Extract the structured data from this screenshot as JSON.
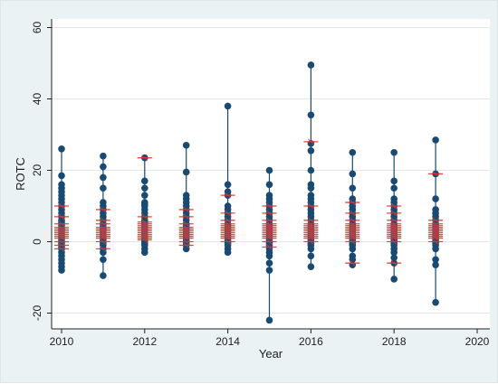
{
  "chart_data": {
    "type": "scatter",
    "title": "",
    "xlabel": "Year",
    "ylabel": "ROTC",
    "xlim": [
      2010,
      2020
    ],
    "ylim": [
      -20,
      60
    ],
    "xticks": [
      2010,
      2012,
      2014,
      2016,
      2018,
      2020
    ],
    "yticks": [
      -20,
      0,
      20,
      40,
      60
    ],
    "grid": "horizontal",
    "legend": "none",
    "colors": {
      "points": "#1a4a72",
      "means": "#e8322b",
      "plot_bg": "#ffffff",
      "frame_bg": "#eaf2f3",
      "grid": "#e1e7ea"
    },
    "series": [
      {
        "kind": "points",
        "groups": [
          {
            "year": 2010,
            "values": [
              26,
              18.5,
              16,
              15,
              14,
              13,
              12,
              11,
              10,
              9,
              8,
              7,
              6,
              5.5,
              5,
              4.5,
              4,
              3.5,
              3,
              2.5,
              2,
              1.5,
              1,
              0.5,
              0,
              -0.5,
              -1,
              -1.5,
              -2,
              -3,
              -4,
              -5,
              -6,
              -7,
              -8
            ]
          },
          {
            "year": 2011,
            "values": [
              24,
              21,
              18,
              15,
              11,
              10,
              9,
              8,
              7,
              6,
              5,
              4.5,
              4,
              3.5,
              3,
              2.5,
              2,
              1.5,
              1,
              0.5,
              0,
              -0.5,
              -1,
              -2,
              -3,
              -5,
              -9.5
            ]
          },
          {
            "year": 2012,
            "values": [
              23.5,
              17,
              15,
              13,
              11,
              10.5,
              10,
              9,
              8,
              7,
              6,
              5.5,
              5,
              4.5,
              4,
              3.5,
              3,
              2.5,
              2,
              1.5,
              1,
              0.5,
              0,
              -0.5,
              -1,
              -2,
              -3
            ]
          },
          {
            "year": 2013,
            "values": [
              27,
              19.5,
              13,
              12,
              11,
              10,
              9,
              8,
              7,
              6,
              5,
              4.5,
              4,
              3.5,
              3,
              2.5,
              2,
              1.5,
              1,
              0.5,
              0,
              -0.5,
              -1,
              -2
            ]
          },
          {
            "year": 2014,
            "values": [
              38,
              16,
              14,
              13,
              10,
              9,
              8,
              7,
              6,
              5,
              4.5,
              4,
              3.5,
              3,
              2.5,
              2,
              1.5,
              1,
              0.5,
              0,
              -0.5,
              -1,
              -2,
              -3
            ]
          },
          {
            "year": 2015,
            "values": [
              20,
              16,
              13,
              12,
              11,
              10,
              9,
              8,
              7,
              6,
              5,
              4.5,
              4,
              3.5,
              3,
              2.5,
              2,
              1.5,
              1,
              0.5,
              0,
              -0.5,
              -1,
              -2,
              -3,
              -4,
              -6,
              -8,
              -22
            ]
          },
          {
            "year": 2016,
            "values": [
              49.5,
              35.5,
              27.5,
              25.5,
              20,
              16,
              15,
              13,
              12,
              11,
              10,
              9,
              8,
              7,
              6,
              5,
              4.5,
              4,
              3.5,
              3,
              2.5,
              2,
              1.5,
              1,
              0.5,
              0,
              -0.5,
              -1,
              -2,
              -4,
              -7
            ]
          },
          {
            "year": 2017,
            "values": [
              25,
              19,
              15,
              12,
              11,
              10,
              9,
              8,
              7,
              6,
              5,
              4.5,
              4,
              3.5,
              3,
              2.5,
              2,
              1.5,
              1,
              0.5,
              0,
              -0.5,
              -1,
              -2,
              -4,
              -5,
              -6.5
            ]
          },
          {
            "year": 2018,
            "values": [
              25,
              17,
              15,
              12,
              11,
              10,
              9,
              8,
              7,
              6,
              5,
              4.5,
              4,
              3.5,
              3,
              2.5,
              2,
              1.5,
              1,
              0.5,
              0,
              -0.5,
              -1,
              -2,
              -3,
              -4.5,
              -6,
              -10.5
            ]
          },
          {
            "year": 2019,
            "values": [
              28.5,
              19,
              12,
              9,
              8,
              7,
              6,
              5,
              4.5,
              4,
              3.5,
              3,
              2.5,
              2,
              1.5,
              1,
              0.5,
              0,
              -0.5,
              -1,
              -2,
              -5,
              -6.5,
              -17
            ]
          }
        ]
      },
      {
        "kind": "mean-markers",
        "groups": [
          {
            "year": 2010,
            "values": [
              10,
              7,
              5,
              4,
              3.5,
              3,
              2.5,
              2,
              1.5,
              1,
              0,
              -1,
              -2
            ]
          },
          {
            "year": 2011,
            "values": [
              9,
              6,
              5,
              4,
              3.5,
              3,
              2.5,
              2,
              1.5,
              1,
              0,
              -2
            ]
          },
          {
            "year": 2012,
            "values": [
              23.5,
              7,
              5.5,
              5,
              4.5,
              4,
              3.5,
              3,
              2.5,
              2,
              1.5,
              1,
              0.5
            ]
          },
          {
            "year": 2013,
            "values": [
              9,
              7,
              5,
              4,
              3.5,
              3,
              2.5,
              2,
              1.5,
              1,
              0,
              -1
            ]
          },
          {
            "year": 2014,
            "values": [
              13,
              8,
              6,
              5,
              4.5,
              4,
              3.5,
              3,
              2.5,
              2,
              1.5,
              1,
              0
            ]
          },
          {
            "year": 2015,
            "values": [
              10,
              8,
              6,
              5,
              4.5,
              4,
              3.5,
              3,
              2.5,
              2,
              1.5,
              1,
              0,
              -1.5
            ]
          },
          {
            "year": 2016,
            "values": [
              28,
              10,
              6,
              5,
              4.5,
              4,
              3.5,
              3,
              2.5,
              2,
              1.5,
              1,
              0
            ]
          },
          {
            "year": 2017,
            "values": [
              11,
              8,
              6,
              5,
              4.5,
              4,
              3.5,
              3,
              2.5,
              2,
              1.5,
              1,
              0,
              -6
            ]
          },
          {
            "year": 2018,
            "values": [
              10,
              8,
              6,
              5,
              4.5,
              4,
              3.5,
              3,
              2.5,
              2,
              1.5,
              1,
              0,
              -6
            ]
          },
          {
            "year": 2019,
            "values": [
              19,
              6,
              5,
              4.5,
              4,
              3.5,
              3,
              2.5,
              2,
              1.5,
              1,
              0
            ]
          }
        ]
      }
    ]
  }
}
